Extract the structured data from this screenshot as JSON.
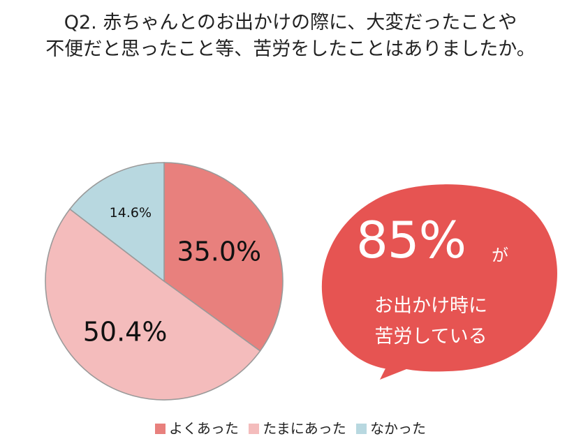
{
  "title": {
    "line1": "Q2. 赤ちゃんとのお出かけの際に、大変だったことや",
    "line2": "不便だと思ったこと等、苦労をしたことはありましたか。"
  },
  "chart_data": {
    "type": "pie",
    "slices": [
      {
        "label": "よくあった",
        "value": 35.0,
        "value_label": "35.0%",
        "color": "#e8807d"
      },
      {
        "label": "たまにあった",
        "value": 50.4,
        "value_label": "50.4%",
        "color": "#f4bcbc"
      },
      {
        "label": "なかった",
        "value": 14.6,
        "value_label": "14.6%",
        "color": "#b8d8e0"
      }
    ],
    "legend_position": "bottom"
  },
  "callout": {
    "big": "85%",
    "suffix": "が",
    "line1": "お出かけ時に",
    "line2": "苦労している",
    "color": "#e65452"
  }
}
